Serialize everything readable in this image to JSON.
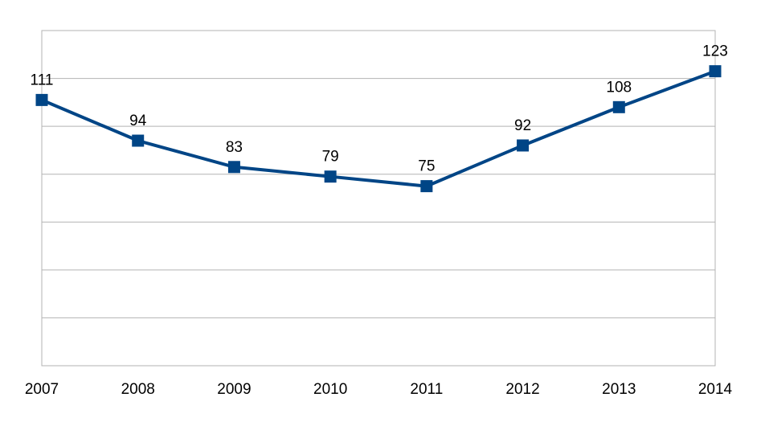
{
  "chart_data": {
    "type": "line",
    "x": [
      "2007",
      "2008",
      "2009",
      "2010",
      "2011",
      "2012",
      "2013",
      "2014"
    ],
    "series": [
      {
        "values": [
          111,
          94,
          83,
          79,
          75,
          92,
          108,
          123
        ]
      }
    ],
    "data_labels": [
      "111",
      "94",
      "83",
      "79",
      "75",
      "92",
      "108",
      "123"
    ],
    "ylim": [
      0,
      140
    ],
    "y_gridline_step": 20,
    "y_tick_labels_shown": false,
    "grid": true,
    "legend": "none",
    "colors": {
      "series": "#004586",
      "grid": "#b3b3b3"
    }
  }
}
